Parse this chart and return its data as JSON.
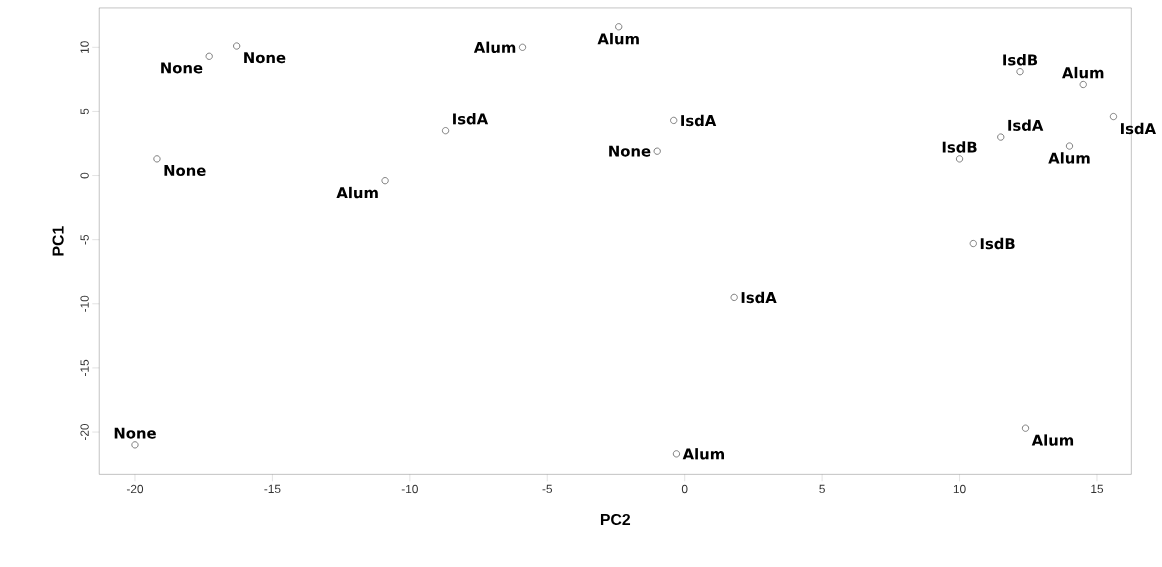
{
  "chart_data": {
    "type": "scatter",
    "xlabel": "PC2",
    "ylabel": "PC1",
    "marker": "circle",
    "grid": false,
    "xlim": [
      -21.3,
      16.25
    ],
    "ylim": [
      -23.3,
      13.07
    ],
    "xticks": [
      -20,
      -15,
      -10,
      -5,
      0,
      5,
      10,
      15
    ],
    "yticks": [
      -20,
      -15,
      -10,
      -5,
      0,
      5,
      10
    ],
    "series": [
      {
        "color": "#707070",
        "x": [
          -17.3,
          -16.3,
          -19.2,
          -20.0,
          -5.9,
          -2.4,
          -8.7,
          -10.9,
          -0.4,
          -1.0,
          1.8,
          -0.3,
          12.2,
          14.5,
          15.6,
          11.5,
          14.0,
          10.0,
          10.5,
          12.4
        ],
        "values": [
          9.3,
          10.1,
          1.3,
          -21.0,
          10.0,
          11.6,
          3.5,
          -0.4,
          4.3,
          1.9,
          -9.5,
          -21.7,
          8.1,
          7.1,
          4.6,
          3.0,
          2.3,
          1.3,
          -5.3,
          -19.7
        ]
      }
    ],
    "annotations": [
      {
        "text": "None",
        "x": -17.3,
        "y": 9.3
      },
      {
        "text": "None",
        "x": -16.3,
        "y": 10.1
      },
      {
        "text": "None",
        "x": -19.2,
        "y": 1.3
      },
      {
        "text": "None",
        "x": -20.0,
        "y": -21.0
      },
      {
        "text": "Alum",
        "x": -5.9,
        "y": 10.0
      },
      {
        "text": "Alum",
        "x": -2.4,
        "y": 11.6
      },
      {
        "text": "IsdA",
        "x": -8.7,
        "y": 3.5
      },
      {
        "text": "Alum",
        "x": -10.9,
        "y": -0.4
      },
      {
        "text": "IsdA",
        "x": -0.4,
        "y": 4.3
      },
      {
        "text": "None",
        "x": -1.0,
        "y": 1.9
      },
      {
        "text": "IsdA",
        "x": 1.8,
        "y": -9.5
      },
      {
        "text": "Alum",
        "x": -0.3,
        "y": -21.7
      },
      {
        "text": "IsdB",
        "x": 12.2,
        "y": 8.1
      },
      {
        "text": "Alum",
        "x": 14.5,
        "y": 7.1
      },
      {
        "text": "IsdA",
        "x": 15.6,
        "y": 4.6
      },
      {
        "text": "IsdA",
        "x": 11.5,
        "y": 3.0
      },
      {
        "text": "Alum",
        "x": 14.0,
        "y": 2.3
      },
      {
        "text": "IsdB",
        "x": 10.0,
        "y": 1.3
      },
      {
        "text": "IsdB",
        "x": 10.5,
        "y": -5.3
      },
      {
        "text": "Alum",
        "x": 12.4,
        "y": -19.7
      }
    ]
  }
}
